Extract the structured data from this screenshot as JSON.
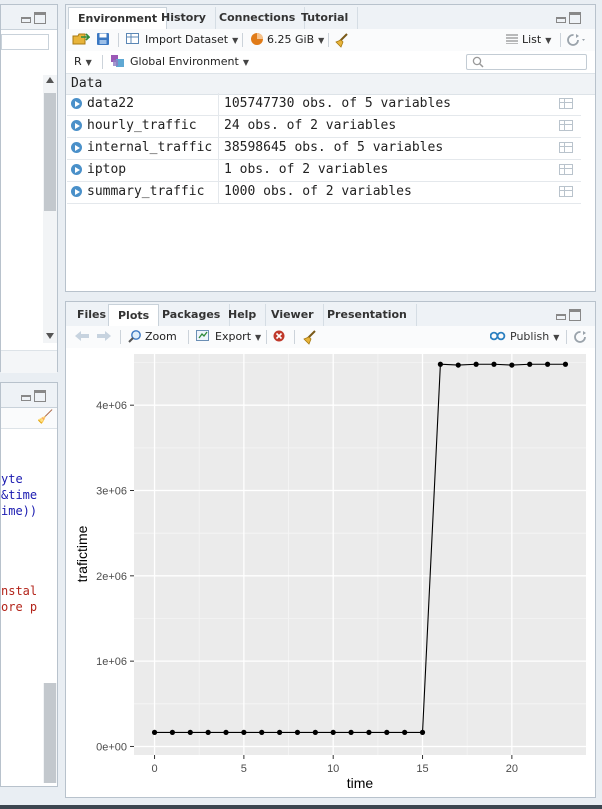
{
  "environment": {
    "tabs": [
      "Environment",
      "History",
      "Connections",
      "Tutorial"
    ],
    "toolbar": {
      "import_label": "Import Dataset",
      "memory_label": "6.25 GiB",
      "view_label": "List"
    },
    "scope": {
      "language": "R",
      "env_label": "Global Environment"
    },
    "section_header": "Data",
    "rows": [
      {
        "name": "data22",
        "value": "105747730 obs. of 5 variables"
      },
      {
        "name": "hourly_traffic",
        "value": "24 obs. of 2 variables"
      },
      {
        "name": "internal_traffic",
        "value": "38598645 obs. of 5 variables"
      },
      {
        "name": "iptop",
        "value": "1 obs. of 2 variables"
      },
      {
        "name": "summary_traffic",
        "value": "1000 obs. of 2 variables"
      }
    ]
  },
  "files": {
    "tabs": [
      "Files",
      "Plots",
      "Packages",
      "Help",
      "Viewer",
      "Presentation"
    ],
    "toolbar": {
      "zoom_label": "Zoom",
      "export_label": "Export",
      "publish_label": "Publish"
    }
  },
  "left_editor_fragments": [
    {
      "text": "yte",
      "color": "#1a1ab0"
    },
    {
      "text": "&time",
      "color": "#1a1ab0"
    },
    {
      "text": "ime))",
      "color": "#1a1ab0"
    },
    {
      "text": "nstal",
      "color": "#b3241a"
    },
    {
      "text": "ore p",
      "color": "#b3241a"
    }
  ],
  "chart_data": {
    "type": "line",
    "xlabel": "time",
    "ylabel": "trafictime",
    "xlim": [
      -1.15,
      24.15
    ],
    "ylim": [
      -100000,
      4600000
    ],
    "x_ticks": [
      0,
      5,
      10,
      15,
      20
    ],
    "x_tick_labels": [
      "0",
      "5",
      "10",
      "15",
      "20"
    ],
    "y_ticks": [
      0,
      1000000,
      2000000,
      3000000,
      4000000
    ],
    "y_tick_labels": [
      "0e+00",
      "1e+06",
      "2e+06",
      "3e+06",
      "4e+06"
    ],
    "grid": true,
    "series": [
      {
        "x": [
          0,
          1,
          2,
          3,
          4,
          5,
          6,
          7,
          8,
          9,
          10,
          11,
          12,
          13,
          14,
          15,
          16,
          17,
          18,
          19,
          20,
          21,
          22,
          23
        ],
        "y": [
          165000,
          165000,
          165000,
          165000,
          165000,
          165000,
          165000,
          165000,
          165000,
          165000,
          165000,
          165000,
          165000,
          165000,
          165000,
          165000,
          4480000,
          4470000,
          4480000,
          4480000,
          4470000,
          4480000,
          4480000,
          4480000
        ]
      }
    ]
  }
}
